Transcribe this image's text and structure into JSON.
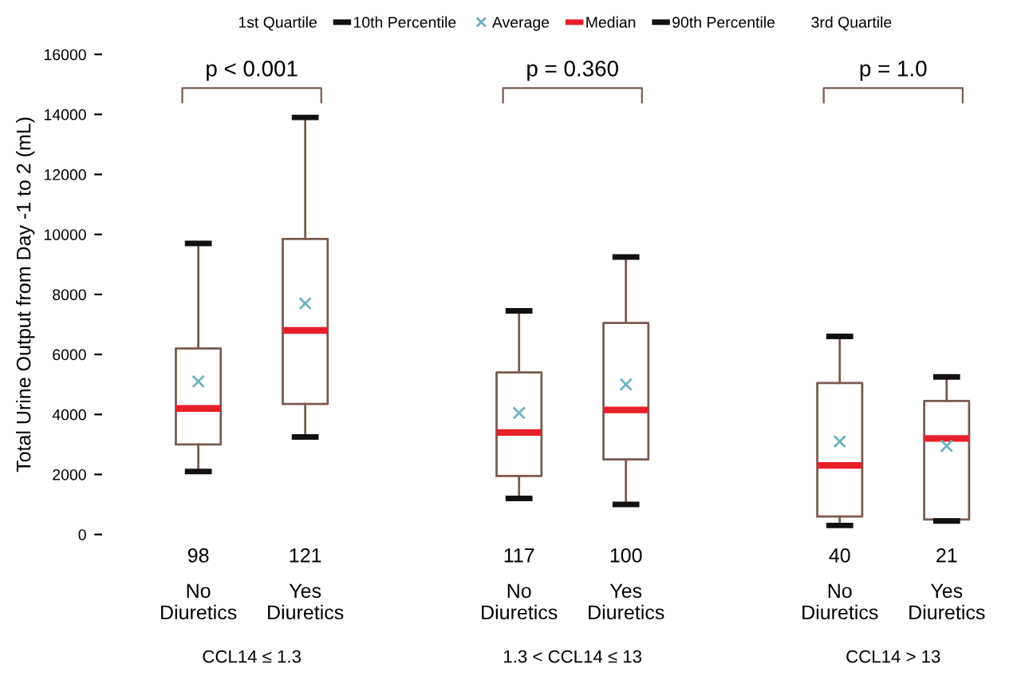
{
  "chart_data": {
    "type": "box",
    "ylabel": "Total Urine Output from Day -1 to 2 (mL)",
    "categories": [
      "No Diuretics",
      "Yes Diuretics",
      "No Diuretics",
      "Yes Diuretics",
      "No Diuretics",
      "Yes Diuretics"
    ],
    "boxes": [
      {
        "low": 2100,
        "q1": 3000,
        "median": 4200,
        "q3": 6200,
        "high": 9700,
        "mean": 5100
      },
      {
        "low": 3250,
        "q1": 4350,
        "median": 6800,
        "q3": 9850,
        "high": 13900,
        "mean": 7700
      },
      {
        "low": 1200,
        "q1": 1950,
        "median": 3400,
        "q3": 5400,
        "high": 7450,
        "mean": 4050
      },
      {
        "low": 1000,
        "q1": 2500,
        "median": 4150,
        "q3": 7050,
        "high": 9250,
        "mean": 5000
      },
      {
        "low": 300,
        "q1": 600,
        "median": 2300,
        "q3": 5050,
        "high": 6600,
        "mean": 3100
      },
      {
        "low": 450,
        "q1": 500,
        "median": 3200,
        "q3": 4450,
        "high": 5250,
        "mean": 2950
      }
    ],
    "ylim": [
      0,
      16000
    ],
    "yticks": [
      0,
      2000,
      4000,
      6000,
      8000,
      10000,
      12000,
      14000,
      16000
    ],
    "grid": false,
    "marker": "cross",
    "annotations": [
      "p < 0.001",
      "p = 0.360",
      "p = 1.0",
      "CCL14 ≤ 1.3",
      "1.3 < CCL14 ≤ 13",
      "CCL14 > 13",
      "98",
      "121",
      "117",
      "100",
      "40",
      "21",
      "1st Quartile",
      "10th Percentile",
      "Average",
      "Median",
      "90th Percentile",
      "3rd Quartile"
    ]
  }
}
